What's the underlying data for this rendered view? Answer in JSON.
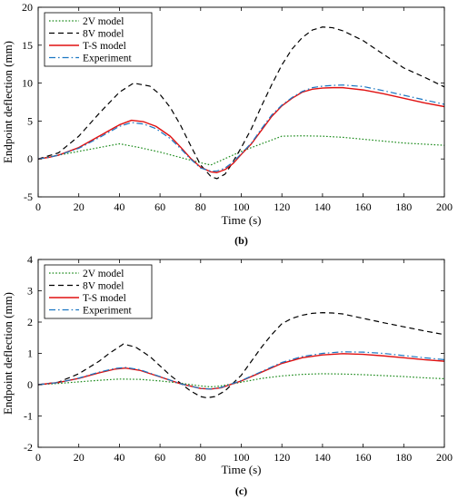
{
  "chart_data": [
    {
      "type": "line",
      "panel": "(b)",
      "xlabel": "Time (s)",
      "ylabel": "Endpoint deflection (mm)",
      "xlim": [
        0,
        200
      ],
      "ylim": [
        -5,
        20
      ],
      "xticks": [
        0,
        20,
        40,
        60,
        80,
        100,
        120,
        140,
        160,
        180,
        200
      ],
      "yticks": [
        -5,
        0,
        5,
        10,
        15,
        20
      ],
      "grid": false,
      "legend": "top-left",
      "series": [
        {
          "name": "2V model",
          "color": "#1a8a1a",
          "style": "dotted",
          "x": [
            0,
            10,
            20,
            30,
            40,
            50,
            60,
            70,
            80,
            85,
            90,
            100,
            110,
            120,
            130,
            140,
            150,
            160,
            170,
            180,
            190,
            200
          ],
          "y": [
            0,
            0.5,
            1.0,
            1.5,
            2.0,
            1.5,
            0.9,
            0.2,
            -0.5,
            -0.8,
            -0.2,
            1.0,
            2.0,
            3.0,
            3.05,
            3.0,
            2.85,
            2.6,
            2.35,
            2.1,
            1.95,
            1.8
          ]
        },
        {
          "name": "8V model",
          "color": "#000000",
          "style": "dashed",
          "x": [
            0,
            10,
            20,
            30,
            40,
            47,
            55,
            60,
            65,
            70,
            75,
            80,
            85,
            88,
            92,
            95,
            100,
            105,
            110,
            115,
            120,
            125,
            130,
            135,
            140,
            145,
            150,
            160,
            170,
            180,
            190,
            200
          ],
          "y": [
            0,
            0.8,
            3.0,
            6.0,
            8.8,
            10.0,
            9.6,
            8.5,
            6.8,
            4.5,
            1.8,
            -0.8,
            -2.3,
            -2.6,
            -2.0,
            -0.8,
            1.5,
            4.0,
            7.0,
            9.8,
            12.4,
            14.5,
            16.0,
            17.0,
            17.4,
            17.3,
            16.9,
            15.6,
            13.8,
            12.0,
            10.8,
            9.5
          ]
        },
        {
          "name": "T-S model",
          "color": "#e01010",
          "style": "solid",
          "x": [
            0,
            5,
            10,
            20,
            30,
            40,
            46,
            52,
            58,
            65,
            70,
            75,
            80,
            85,
            88,
            92,
            96,
            100,
            105,
            110,
            115,
            120,
            125,
            130,
            135,
            140,
            145,
            150,
            160,
            170,
            180,
            190,
            200
          ],
          "y": [
            0,
            0.2,
            0.5,
            1.5,
            3.0,
            4.5,
            5.1,
            4.9,
            4.3,
            3.0,
            1.6,
            0.1,
            -1.1,
            -1.7,
            -1.8,
            -1.4,
            -0.6,
            0.6,
            2.0,
            3.8,
            5.6,
            7.0,
            8.0,
            8.8,
            9.2,
            9.35,
            9.4,
            9.4,
            9.1,
            8.6,
            8.0,
            7.4,
            6.9
          ]
        },
        {
          "name": "Experiment",
          "color": "#1a76c2",
          "style": "dashdot",
          "x": [
            0,
            5,
            10,
            20,
            30,
            40,
            46,
            52,
            58,
            65,
            70,
            75,
            80,
            85,
            88,
            92,
            96,
            100,
            105,
            110,
            115,
            120,
            125,
            130,
            135,
            140,
            145,
            150,
            160,
            170,
            180,
            190,
            200
          ],
          "y": [
            0,
            0.2,
            0.5,
            1.4,
            2.8,
            4.3,
            4.8,
            4.6,
            4.0,
            2.7,
            1.4,
            0.0,
            -1.2,
            -1.6,
            -1.6,
            -1.2,
            -0.4,
            0.7,
            2.1,
            4.0,
            5.8,
            7.1,
            8.1,
            8.9,
            9.4,
            9.6,
            9.7,
            9.75,
            9.55,
            9.0,
            8.4,
            7.8,
            7.2
          ]
        }
      ]
    },
    {
      "type": "line",
      "panel": "(c)",
      "xlabel": "Time (s)",
      "ylabel": "Endpoint deflection (mm)",
      "xlim": [
        0,
        200
      ],
      "ylim": [
        -2,
        4
      ],
      "xticks": [
        0,
        20,
        40,
        60,
        80,
        100,
        120,
        140,
        160,
        180,
        200
      ],
      "yticks": [
        -2,
        -1,
        0,
        1,
        2,
        3,
        4
      ],
      "grid": false,
      "legend": "top-left",
      "series": [
        {
          "name": "2V model",
          "color": "#1a8a1a",
          "style": "dotted",
          "x": [
            0,
            10,
            20,
            30,
            40,
            50,
            60,
            70,
            80,
            85,
            90,
            100,
            110,
            120,
            130,
            140,
            150,
            160,
            170,
            180,
            190,
            200
          ],
          "y": [
            0,
            0.04,
            0.09,
            0.14,
            0.18,
            0.17,
            0.12,
            0.05,
            -0.04,
            -0.07,
            -0.04,
            0.08,
            0.2,
            0.28,
            0.33,
            0.35,
            0.34,
            0.32,
            0.29,
            0.26,
            0.22,
            0.19
          ]
        },
        {
          "name": "8V model",
          "color": "#000000",
          "style": "dashed",
          "x": [
            0,
            10,
            20,
            30,
            35,
            42,
            48,
            55,
            60,
            65,
            70,
            75,
            80,
            83,
            87,
            92,
            100,
            105,
            110,
            115,
            120,
            125,
            130,
            135,
            140,
            145,
            150,
            160,
            170,
            180,
            190,
            200
          ],
          "y": [
            0,
            0.08,
            0.35,
            0.75,
            1.0,
            1.3,
            1.2,
            0.9,
            0.6,
            0.3,
            0.05,
            -0.2,
            -0.38,
            -0.42,
            -0.38,
            -0.2,
            0.3,
            0.75,
            1.2,
            1.6,
            1.95,
            2.12,
            2.22,
            2.28,
            2.3,
            2.29,
            2.26,
            2.12,
            1.98,
            1.85,
            1.72,
            1.6
          ]
        },
        {
          "name": "T-S model",
          "color": "#e01010",
          "style": "solid",
          "x": [
            0,
            10,
            20,
            30,
            38,
            43,
            50,
            60,
            70,
            80,
            85,
            90,
            100,
            110,
            120,
            130,
            140,
            150,
            160,
            170,
            180,
            190,
            200
          ],
          "y": [
            0,
            0.07,
            0.2,
            0.38,
            0.5,
            0.53,
            0.46,
            0.25,
            0.03,
            -0.12,
            -0.14,
            -0.1,
            0.12,
            0.4,
            0.68,
            0.86,
            0.95,
            0.99,
            0.97,
            0.92,
            0.86,
            0.8,
            0.75
          ]
        },
        {
          "name": "Experiment",
          "color": "#1a76c2",
          "style": "dashdot",
          "x": [
            0,
            10,
            20,
            30,
            38,
            43,
            50,
            60,
            70,
            80,
            85,
            90,
            100,
            110,
            120,
            130,
            140,
            150,
            160,
            170,
            180,
            190,
            200
          ],
          "y": [
            0,
            0.07,
            0.21,
            0.4,
            0.52,
            0.55,
            0.48,
            0.26,
            0.03,
            -0.12,
            -0.14,
            -0.09,
            0.13,
            0.42,
            0.71,
            0.9,
            1.0,
            1.05,
            1.04,
            1.0,
            0.93,
            0.86,
            0.8
          ]
        }
      ]
    }
  ]
}
